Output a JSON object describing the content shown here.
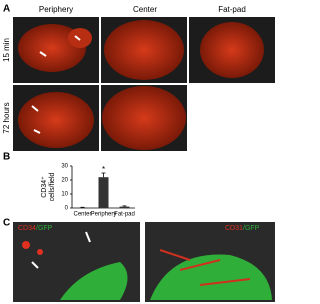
{
  "panels": {
    "a_label": "A",
    "b_label": "B",
    "c_label": "C",
    "columns": [
      "Periphery",
      "Center",
      "Fat-pad"
    ],
    "rows": [
      "15 min",
      "72 hours"
    ],
    "c_left": [
      "CD34",
      "/GFP"
    ],
    "c_right": [
      "CD31",
      "/GFP"
    ]
  },
  "chart_data": {
    "type": "bar",
    "ylabel": [
      "CD34⁺",
      "cells/field"
    ],
    "categories": [
      "Center",
      "Periphery",
      "Fat-pad"
    ],
    "values": [
      0.3,
      22,
      1
    ],
    "errors": [
      0.2,
      3,
      0.5
    ],
    "color": "#333333",
    "ylim": [
      0,
      30
    ],
    "yticks": [
      0,
      10,
      20,
      30
    ],
    "annotation": "*"
  }
}
